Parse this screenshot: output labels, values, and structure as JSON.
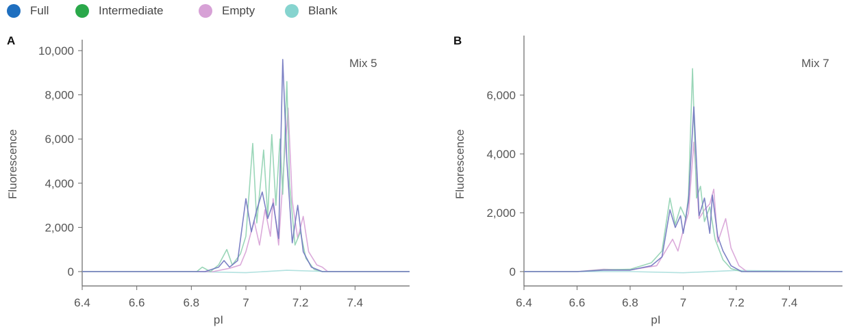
{
  "legend": [
    {
      "label": "Full",
      "color": "#1f6fbf"
    },
    {
      "label": "Intermediate",
      "color": "#2aa84a"
    },
    {
      "label": "Empty",
      "color": "#d7a1d6"
    },
    {
      "label": "Blank",
      "color": "#86d4cf"
    }
  ],
  "chart_data": [
    {
      "type": "line",
      "panel": "A",
      "annotation": "Mix 5",
      "xlabel": "pI",
      "ylabel": "Fluorescence",
      "xlim": [
        6.4,
        7.6
      ],
      "ylim": [
        -500,
        10300
      ],
      "xticks": [
        6.4,
        6.6,
        6.8,
        7,
        7.2,
        7.4
      ],
      "xtick_labels": [
        "6.4",
        "6.6",
        "6.8",
        "7",
        "7.2",
        "7.4"
      ],
      "yticks": [
        0,
        2000,
        4000,
        6000,
        8000,
        10000
      ],
      "ytick_labels": [
        "0",
        "2,000",
        "4,000",
        "6,000",
        "8,000",
        "10,000"
      ],
      "grid": false,
      "series": [
        {
          "name": "Full",
          "color": "#6f74bf",
          "points": [
            [
              6.4,
              0
            ],
            [
              6.85,
              0
            ],
            [
              6.9,
              200
            ],
            [
              6.92,
              500
            ],
            [
              6.94,
              200
            ],
            [
              6.97,
              500
            ],
            [
              7.0,
              3300
            ],
            [
              7.02,
              1800
            ],
            [
              7.04,
              2800
            ],
            [
              7.06,
              3600
            ],
            [
              7.08,
              2400
            ],
            [
              7.1,
              3100
            ],
            [
              7.12,
              1500
            ],
            [
              7.135,
              9600
            ],
            [
              7.15,
              5000
            ],
            [
              7.17,
              1300
            ],
            [
              7.19,
              3000
            ],
            [
              7.21,
              900
            ],
            [
              7.24,
              200
            ],
            [
              7.28,
              0
            ],
            [
              7.6,
              0
            ]
          ]
        },
        {
          "name": "Intermediate",
          "color": "#8fd1b0",
          "points": [
            [
              6.4,
              0
            ],
            [
              6.82,
              0
            ],
            [
              6.84,
              200
            ],
            [
              6.87,
              0
            ],
            [
              6.9,
              300
            ],
            [
              6.93,
              1000
            ],
            [
              6.95,
              300
            ],
            [
              6.98,
              800
            ],
            [
              7.0,
              1600
            ],
            [
              7.025,
              5800
            ],
            [
              7.04,
              2200
            ],
            [
              7.065,
              5500
            ],
            [
              7.08,
              2500
            ],
            [
              7.095,
              6200
            ],
            [
              7.11,
              3000
            ],
            [
              7.125,
              6000
            ],
            [
              7.135,
              3500
            ],
            [
              7.15,
              8600
            ],
            [
              7.16,
              4000
            ],
            [
              7.18,
              1200
            ],
            [
              7.2,
              1800
            ],
            [
              7.22,
              600
            ],
            [
              7.25,
              100
            ],
            [
              7.28,
              0
            ],
            [
              7.6,
              0
            ]
          ]
        },
        {
          "name": "Empty",
          "color": "#d7a1d6",
          "points": [
            [
              6.4,
              0
            ],
            [
              6.88,
              0
            ],
            [
              6.94,
              150
            ],
            [
              6.98,
              300
            ],
            [
              7.0,
              900
            ],
            [
              7.03,
              2300
            ],
            [
              7.05,
              1200
            ],
            [
              7.07,
              2800
            ],
            [
              7.09,
              1600
            ],
            [
              7.1,
              3300
            ],
            [
              7.12,
              1200
            ],
            [
              7.14,
              5000
            ],
            [
              7.155,
              7400
            ],
            [
              7.17,
              3200
            ],
            [
              7.19,
              1500
            ],
            [
              7.21,
              2500
            ],
            [
              7.23,
              900
            ],
            [
              7.26,
              300
            ],
            [
              7.28,
              200
            ],
            [
              7.3,
              0
            ],
            [
              7.6,
              0
            ]
          ]
        },
        {
          "name": "Blank",
          "color": "#a9dedb",
          "points": [
            [
              6.4,
              0
            ],
            [
              6.8,
              0
            ],
            [
              7.0,
              -50
            ],
            [
              7.15,
              60
            ],
            [
              7.3,
              0
            ],
            [
              7.6,
              0
            ]
          ]
        }
      ]
    },
    {
      "type": "line",
      "panel": "B",
      "annotation": "Mix 7",
      "xlabel": "pI",
      "ylabel": "Fluorescence",
      "xlim": [
        6.4,
        7.6
      ],
      "ylim": [
        -300,
        7300
      ],
      "xticks": [
        6.4,
        6.6,
        6.8,
        7,
        7.2,
        7.4
      ],
      "xtick_labels": [
        "6.4",
        "6.6",
        "6.8",
        "7",
        "7.2",
        "7.4"
      ],
      "yticks": [
        0,
        2000,
        4000,
        6000
      ],
      "ytick_labels": [
        "0",
        "2,000",
        "4,000",
        "6,000"
      ],
      "grid": false,
      "series": [
        {
          "name": "Full",
          "color": "#6f74bf",
          "points": [
            [
              6.4,
              0
            ],
            [
              6.6,
              0
            ],
            [
              6.7,
              50
            ],
            [
              6.8,
              50
            ],
            [
              6.88,
              200
            ],
            [
              6.92,
              500
            ],
            [
              6.95,
              2100
            ],
            [
              6.97,
              1500
            ],
            [
              6.99,
              1900
            ],
            [
              7.0,
              1300
            ],
            [
              7.02,
              2400
            ],
            [
              7.04,
              5600
            ],
            [
              7.06,
              1900
            ],
            [
              7.08,
              2500
            ],
            [
              7.1,
              1300
            ],
            [
              7.11,
              2600
            ],
            [
              7.13,
              1200
            ],
            [
              7.15,
              700
            ],
            [
              7.18,
              200
            ],
            [
              7.22,
              0
            ],
            [
              7.6,
              0
            ]
          ]
        },
        {
          "name": "Intermediate",
          "color": "#8fd1b0",
          "points": [
            [
              6.4,
              0
            ],
            [
              6.6,
              0
            ],
            [
              6.7,
              60
            ],
            [
              6.8,
              80
            ],
            [
              6.88,
              300
            ],
            [
              6.92,
              700
            ],
            [
              6.95,
              2500
            ],
            [
              6.97,
              1600
            ],
            [
              6.99,
              2200
            ],
            [
              7.01,
              1800
            ],
            [
              7.02,
              2600
            ],
            [
              7.035,
              6900
            ],
            [
              7.05,
              2500
            ],
            [
              7.065,
              2900
            ],
            [
              7.08,
              1700
            ],
            [
              7.1,
              2200
            ],
            [
              7.12,
              1100
            ],
            [
              7.15,
              400
            ],
            [
              7.18,
              100
            ],
            [
              7.22,
              0
            ],
            [
              7.6,
              0
            ]
          ]
        },
        {
          "name": "Empty",
          "color": "#d7a1d6",
          "points": [
            [
              6.4,
              0
            ],
            [
              6.6,
              0
            ],
            [
              6.7,
              80
            ],
            [
              6.8,
              60
            ],
            [
              6.9,
              200
            ],
            [
              6.94,
              800
            ],
            [
              6.96,
              1100
            ],
            [
              6.98,
              700
            ],
            [
              7.0,
              1400
            ],
            [
              7.02,
              2000
            ],
            [
              7.04,
              4400
            ],
            [
              7.06,
              1800
            ],
            [
              7.08,
              2100
            ],
            [
              7.1,
              2300
            ],
            [
              7.115,
              2800
            ],
            [
              7.13,
              1000
            ],
            [
              7.16,
              1800
            ],
            [
              7.18,
              800
            ],
            [
              7.21,
              200
            ],
            [
              7.24,
              0
            ],
            [
              7.6,
              0
            ]
          ]
        },
        {
          "name": "Blank",
          "color": "#a9dedb",
          "points": [
            [
              6.4,
              0
            ],
            [
              6.8,
              0
            ],
            [
              7.0,
              -40
            ],
            [
              7.2,
              40
            ],
            [
              7.6,
              0
            ]
          ]
        }
      ]
    }
  ]
}
